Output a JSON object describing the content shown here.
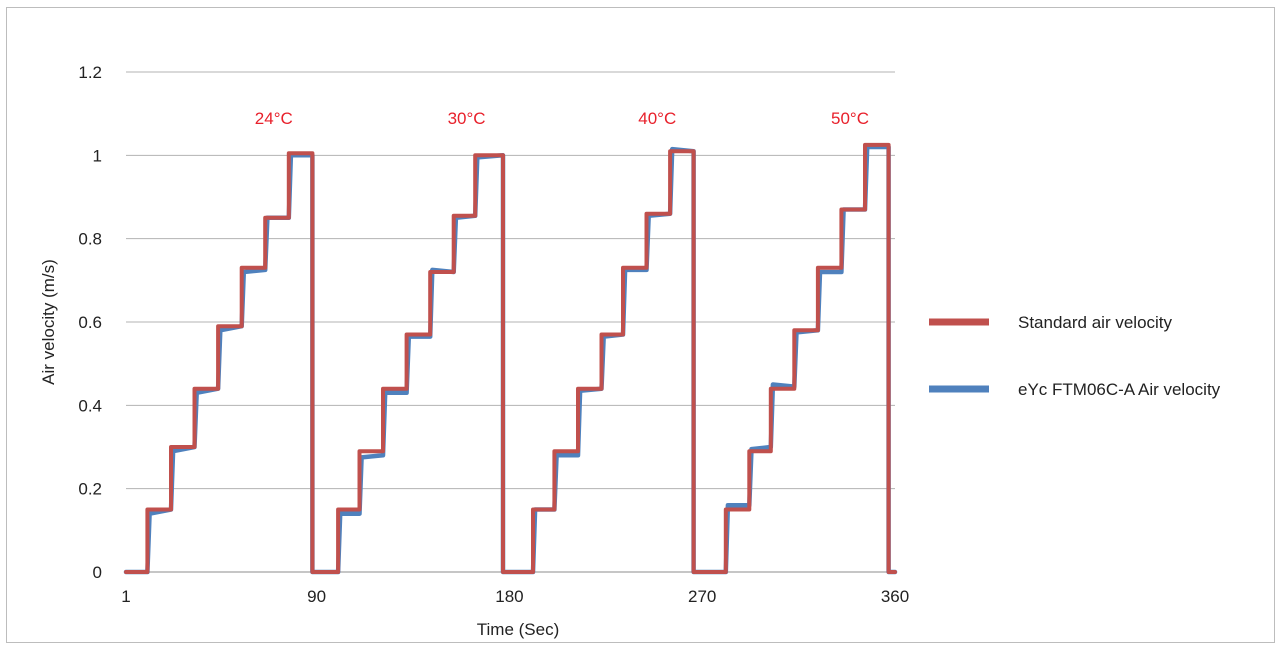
{
  "chart_data": {
    "type": "line",
    "title": "",
    "xlabel": "Time (Sec)",
    "ylabel": "Air velocity (m/s)",
    "xlim": [
      1,
      360
    ],
    "ylim": [
      0,
      1.2
    ],
    "x_ticks": [
      1,
      90,
      180,
      270,
      360
    ],
    "x_tick_labels": [
      "1",
      "90",
      "180",
      "270",
      "360"
    ],
    "y_ticks": [
      0,
      0.2,
      0.4,
      0.6,
      0.8,
      1,
      1.2
    ],
    "y_tick_labels": [
      "0",
      "0.2",
      "0.4",
      "0.6",
      "0.8",
      "1",
      "1.2"
    ],
    "grid": "horizontal",
    "legend_position": "right",
    "annotations": [
      {
        "text": "24°C",
        "x": 70,
        "y": 1.09
      },
      {
        "text": "30°C",
        "x": 160,
        "y": 1.09
      },
      {
        "text": "40°C",
        "x": 249,
        "y": 1.09
      },
      {
        "text": "50°C",
        "x": 339,
        "y": 1.09
      }
    ],
    "series": [
      {
        "name": "Standard air velocity",
        "color": "#c0504d",
        "points": [
          [
            1,
            0
          ],
          [
            11,
            0
          ],
          [
            11,
            0.15
          ],
          [
            22,
            0.15
          ],
          [
            22,
            0.3
          ],
          [
            33,
            0.3
          ],
          [
            33,
            0.44
          ],
          [
            44,
            0.44
          ],
          [
            44,
            0.59
          ],
          [
            55,
            0.59
          ],
          [
            55,
            0.73
          ],
          [
            66,
            0.73
          ],
          [
            66,
            0.85
          ],
          [
            77,
            0.85
          ],
          [
            77,
            1.005
          ],
          [
            88,
            1.005
          ],
          [
            88,
            0
          ],
          [
            100,
            0
          ],
          [
            100,
            0.15
          ],
          [
            110,
            0.15
          ],
          [
            110,
            0.29
          ],
          [
            121,
            0.29
          ],
          [
            121,
            0.44
          ],
          [
            132,
            0.44
          ],
          [
            132,
            0.57
          ],
          [
            143,
            0.57
          ],
          [
            143,
            0.72
          ],
          [
            154,
            0.72
          ],
          [
            154,
            0.855
          ],
          [
            164,
            0.855
          ],
          [
            164,
            1.0
          ],
          [
            177,
            1.0
          ],
          [
            177,
            0
          ],
          [
            191,
            0
          ],
          [
            191,
            0.15
          ],
          [
            201,
            0.15
          ],
          [
            201,
            0.29
          ],
          [
            212,
            0.29
          ],
          [
            212,
            0.44
          ],
          [
            223,
            0.44
          ],
          [
            223,
            0.57
          ],
          [
            233,
            0.57
          ],
          [
            233,
            0.73
          ],
          [
            244,
            0.73
          ],
          [
            244,
            0.86
          ],
          [
            255,
            0.86
          ],
          [
            255,
            1.01
          ],
          [
            266,
            1.01
          ],
          [
            266,
            0
          ],
          [
            281,
            0
          ],
          [
            281,
            0.15
          ],
          [
            292,
            0.15
          ],
          [
            292,
            0.29
          ],
          [
            302,
            0.29
          ],
          [
            302,
            0.44
          ],
          [
            313,
            0.44
          ],
          [
            313,
            0.58
          ],
          [
            324,
            0.58
          ],
          [
            324,
            0.73
          ],
          [
            335,
            0.73
          ],
          [
            335,
            0.87
          ],
          [
            346,
            0.87
          ],
          [
            346,
            1.025
          ],
          [
            357,
            1.025
          ],
          [
            357,
            0
          ],
          [
            360,
            0
          ]
        ]
      },
      {
        "name": "eYc FTM06C-A Air velocity",
        "color": "#4f81bd",
        "points": [
          [
            1,
            0
          ],
          [
            11,
            0
          ],
          [
            12,
            0.14
          ],
          [
            22,
            0.15
          ],
          [
            23,
            0.29
          ],
          [
            33,
            0.3
          ],
          [
            34,
            0.43
          ],
          [
            44,
            0.44
          ],
          [
            45,
            0.58
          ],
          [
            55,
            0.59
          ],
          [
            56,
            0.72
          ],
          [
            66,
            0.725
          ],
          [
            67,
            0.85
          ],
          [
            77,
            0.85
          ],
          [
            78,
            1.0
          ],
          [
            88,
            1.0
          ],
          [
            88,
            0
          ],
          [
            100,
            0
          ],
          [
            101,
            0.14
          ],
          [
            110,
            0.14
          ],
          [
            111,
            0.275
          ],
          [
            121,
            0.28
          ],
          [
            122,
            0.43
          ],
          [
            132,
            0.43
          ],
          [
            133,
            0.565
          ],
          [
            143,
            0.565
          ],
          [
            144,
            0.725
          ],
          [
            154,
            0.72
          ],
          [
            155,
            0.85
          ],
          [
            164,
            0.855
          ],
          [
            165,
            0.995
          ],
          [
            177,
            1.0
          ],
          [
            177,
            0
          ],
          [
            191,
            0
          ],
          [
            192,
            0.15
          ],
          [
            201,
            0.15
          ],
          [
            202,
            0.28
          ],
          [
            212,
            0.28
          ],
          [
            213,
            0.435
          ],
          [
            223,
            0.44
          ],
          [
            224,
            0.565
          ],
          [
            233,
            0.57
          ],
          [
            234,
            0.725
          ],
          [
            244,
            0.725
          ],
          [
            245,
            0.855
          ],
          [
            255,
            0.86
          ],
          [
            256,
            1.015
          ],
          [
            266,
            1.01
          ],
          [
            266,
            0
          ],
          [
            281,
            0
          ],
          [
            282,
            0.16
          ],
          [
            292,
            0.16
          ],
          [
            293,
            0.295
          ],
          [
            302,
            0.3
          ],
          [
            303,
            0.45
          ],
          [
            313,
            0.445
          ],
          [
            314,
            0.575
          ],
          [
            324,
            0.58
          ],
          [
            325,
            0.72
          ],
          [
            335,
            0.72
          ],
          [
            336,
            0.87
          ],
          [
            346,
            0.87
          ],
          [
            347,
            1.02
          ],
          [
            357,
            1.02
          ],
          [
            357,
            0
          ],
          [
            360,
            0
          ]
        ]
      }
    ]
  }
}
